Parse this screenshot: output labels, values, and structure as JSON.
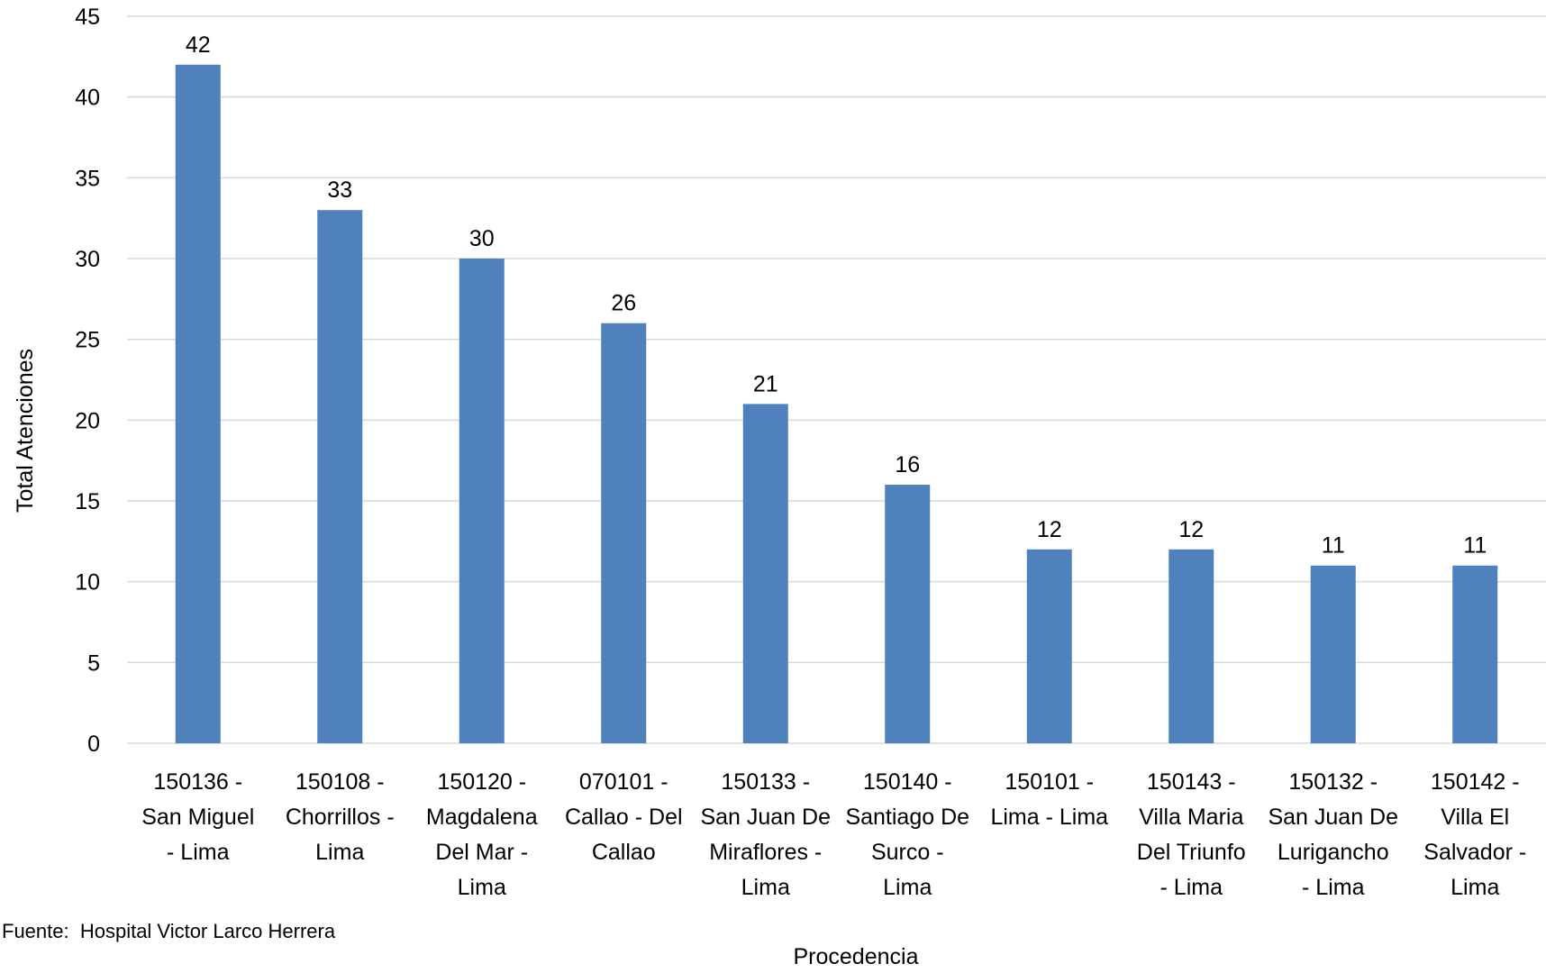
{
  "chart_data": {
    "type": "bar",
    "title": "",
    "xlabel": "Procedencia",
    "ylabel": "Total Atenciones",
    "ylim": [
      0,
      45
    ],
    "yticks": [
      0,
      5,
      10,
      15,
      20,
      25,
      30,
      35,
      40,
      45
    ],
    "grid": true,
    "legend": "none",
    "categories": [
      [
        "150136 -",
        "San Miguel",
        "- Lima"
      ],
      [
        "150108 -",
        "Chorrillos -",
        "Lima"
      ],
      [
        "150120 -",
        "Magdalena",
        "Del Mar -",
        "Lima"
      ],
      [
        "070101 -",
        "Callao - Del",
        "Callao"
      ],
      [
        "150133 -",
        "San Juan De",
        "Miraflores -",
        "Lima"
      ],
      [
        "150140 -",
        "Santiago De",
        "Surco -",
        "Lima"
      ],
      [
        "150101 -",
        "Lima - Lima"
      ],
      [
        "150143 -",
        "Villa Maria",
        "Del Triunfo",
        "- Lima"
      ],
      [
        "150132 -",
        "San Juan De",
        "Lurigancho",
        "- Lima"
      ],
      [
        "150142 -",
        "Villa El",
        "Salvador -",
        "Lima"
      ]
    ],
    "series": [
      {
        "values": [
          42,
          33,
          30,
          26,
          21,
          16,
          12,
          12,
          11,
          11
        ],
        "color": "#4f81bd"
      }
    ],
    "data_labels": true,
    "source_note": "Fuente:  Hospital Victor Larco Herrera"
  }
}
